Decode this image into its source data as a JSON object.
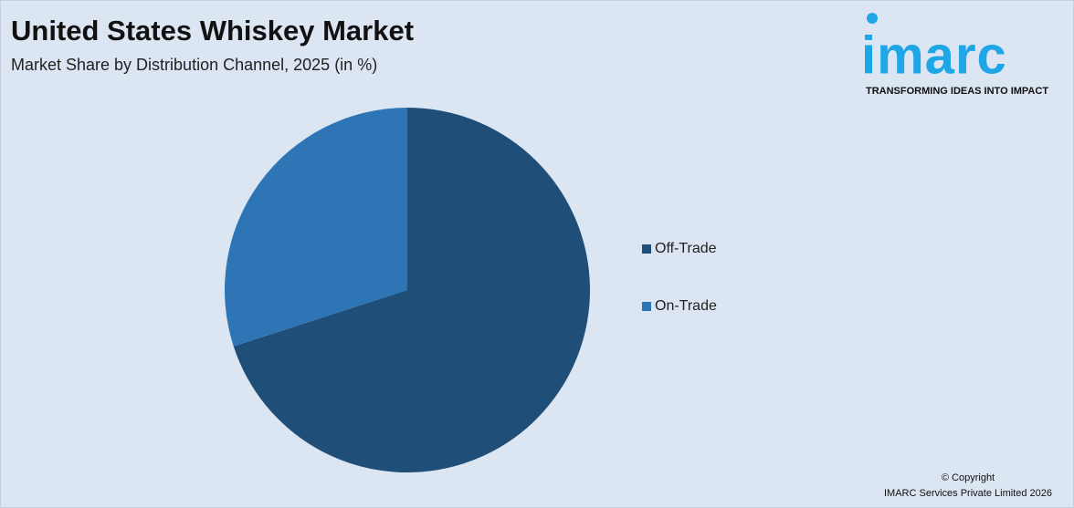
{
  "chart_data": {
    "type": "pie",
    "title": "United States Whiskey Market",
    "subtitle": "Market Share by Distribution Channel, 2025 (in %)",
    "categories": [
      "Off-Trade",
      "On-Trade"
    ],
    "values": [
      70,
      30
    ],
    "colors": [
      "#1f4e79",
      "#2e75b6"
    ],
    "legend": "right"
  },
  "logo": {
    "name": "imarc",
    "tagline": "TRANSFORMING IDEAS INTO IMPACT"
  },
  "footer": {
    "copyright": "© Copyright",
    "company": "IMARC Services Private Limited 2026"
  }
}
